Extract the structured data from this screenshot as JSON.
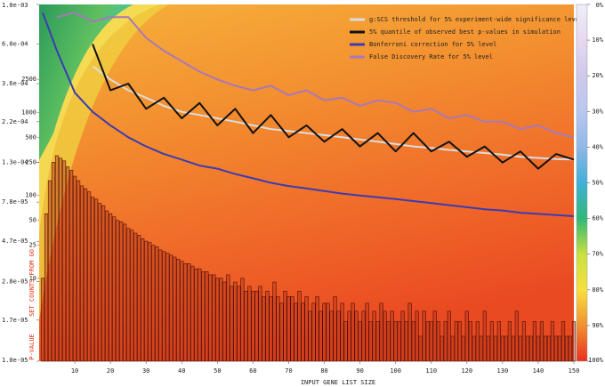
{
  "chart_data": {
    "type": "line",
    "x_label": "INPUT GENE LIST SIZE",
    "y_label": "P-VALUE",
    "y2_label": "SET COUNTS FROM GO",
    "xlim": [
      0,
      150
    ],
    "xticks": [
      10,
      20,
      30,
      40,
      50,
      60,
      70,
      80,
      90,
      100,
      110,
      120,
      130,
      140,
      150
    ],
    "ylim": [
      1e-05,
      0.001
    ],
    "y_log": true,
    "yticks": [
      {
        "value": 0.001,
        "label": "1.0e-03"
      },
      {
        "value": 0.0006,
        "label": "6.0e-04"
      },
      {
        "value": 0.00036,
        "label": "3.6e-04"
      },
      {
        "value": 0.00022,
        "label": "2.2e-04"
      },
      {
        "value": 0.00013,
        "label": "1.3e-04"
      },
      {
        "value": 7.8e-05,
        "label": "7.8e-05"
      },
      {
        "value": 4.7e-05,
        "label": "4.7e-05"
      },
      {
        "value": 2.8e-05,
        "label": "2.8e-05"
      },
      {
        "value": 1.7e-05,
        "label": "1.7e-05"
      },
      {
        "value": 1e-05,
        "label": "1.0e-05"
      }
    ],
    "y2lim": [
      1,
      20000
    ],
    "y2_log": true,
    "y2ticks": [
      10,
      25,
      50,
      100,
      250,
      500,
      1000,
      2500
    ],
    "y2_color": "#e03010",
    "legend": "top-right",
    "x": [
      1,
      5,
      10,
      15,
      20,
      25,
      30,
      35,
      40,
      45,
      50,
      55,
      60,
      65,
      70,
      75,
      80,
      85,
      90,
      95,
      100,
      105,
      110,
      115,
      120,
      125,
      130,
      135,
      140,
      145,
      150
    ],
    "series": [
      {
        "name": "g:SCS threshold for 5% experiment-wide significance level",
        "color": "#dcdcdc",
        "values": [
          null,
          null,
          null,
          0.00045,
          0.00038,
          0.00033,
          0.0003,
          0.00027,
          0.00025,
          0.00024,
          0.00023,
          0.00022,
          0.00021,
          0.0002,
          0.000195,
          0.00019,
          0.000185,
          0.00018,
          0.000175,
          0.00017,
          0.000165,
          0.00016,
          0.000157,
          0.000153,
          0.00015,
          0.000147,
          0.000144,
          0.00014,
          0.000138,
          0.000136,
          0.000135
        ]
      },
      {
        "name": "5% quantile of observed best p-values in simulation",
        "color": "#111111",
        "values": [
          null,
          null,
          null,
          0.0006,
          0.00033,
          0.00036,
          0.00026,
          0.0003,
          0.00023,
          0.00028,
          0.00021,
          0.00026,
          0.00019,
          0.00024,
          0.00018,
          0.00021,
          0.00017,
          0.0002,
          0.00016,
          0.00019,
          0.00015,
          0.00019,
          0.00015,
          0.00017,
          0.00014,
          0.00016,
          0.00013,
          0.00015,
          0.00012,
          0.000145,
          0.000135
        ]
      },
      {
        "name": "Bonferroni correction for 5% level",
        "color": "#3c3cb0",
        "values": [
          0.0009,
          0.00055,
          0.00032,
          0.00025,
          0.00021,
          0.00018,
          0.00016,
          0.000145,
          0.000135,
          0.000125,
          0.00012,
          0.000112,
          0.000106,
          0.0001,
          9.6e-05,
          9.3e-05,
          9e-05,
          8.7e-05,
          8.5e-05,
          8.3e-05,
          8.1e-05,
          7.9e-05,
          7.7e-05,
          7.5e-05,
          7.3e-05,
          7.1e-05,
          7e-05,
          6.8e-05,
          6.7e-05,
          6.6e-05,
          6.5e-05
        ]
      },
      {
        "name": "False Discovery Rate for 5% level",
        "color": "#a878b8",
        "values": [
          null,
          0.00085,
          0.0009,
          0.0008,
          0.00085,
          0.00085,
          0.00065,
          0.00055,
          0.00048,
          0.00042,
          0.00038,
          0.00035,
          0.00033,
          0.00035,
          0.00031,
          0.00033,
          0.00029,
          0.0003,
          0.00027,
          0.00029,
          0.00028,
          0.00025,
          0.00026,
          0.00023,
          0.00024,
          0.00022,
          0.00022,
          0.0002,
          0.00021,
          0.00019,
          0.00018
        ]
      }
    ],
    "bars": {
      "axis": "y2",
      "color": "#b83218",
      "x": [
        1,
        2,
        3,
        4,
        5,
        6,
        7,
        8,
        9,
        10,
        11,
        12,
        13,
        14,
        15,
        16,
        17,
        18,
        19,
        20,
        21,
        22,
        23,
        24,
        25,
        26,
        27,
        28,
        29,
        30,
        31,
        32,
        33,
        34,
        35,
        36,
        37,
        38,
        39,
        40,
        41,
        42,
        43,
        44,
        45,
        46,
        47,
        48,
        49,
        50,
        51,
        52,
        53,
        54,
        55,
        56,
        57,
        58,
        59,
        60,
        61,
        62,
        63,
        64,
        65,
        66,
        67,
        68,
        69,
        70,
        71,
        72,
        73,
        74,
        75,
        76,
        77,
        78,
        79,
        80,
        81,
        82,
        83,
        84,
        85,
        86,
        87,
        88,
        89,
        90,
        91,
        92,
        93,
        94,
        95,
        96,
        97,
        98,
        99,
        100,
        101,
        102,
        103,
        104,
        105,
        106,
        107,
        108,
        109,
        110,
        111,
        112,
        113,
        114,
        115,
        116,
        117,
        118,
        119,
        120,
        121,
        122,
        123,
        124,
        125,
        126,
        127,
        128,
        129,
        130,
        131,
        132,
        133,
        134,
        135,
        136,
        137,
        138,
        139,
        140,
        141,
        142,
        143,
        144,
        145,
        146,
        147,
        148,
        149,
        150
      ],
      "values": [
        10,
        60,
        150,
        250,
        300,
        280,
        260,
        220,
        200,
        170,
        150,
        130,
        120,
        110,
        95,
        90,
        80,
        75,
        65,
        60,
        55,
        50,
        48,
        45,
        40,
        38,
        35,
        33,
        30,
        28,
        27,
        25,
        24,
        22,
        21,
        20,
        19,
        18,
        17,
        16,
        15,
        15,
        14,
        13,
        13,
        12,
        12,
        11,
        11,
        10,
        10,
        9,
        11,
        8,
        9,
        8,
        10,
        7,
        8,
        7,
        7,
        8,
        6,
        7,
        6,
        9,
        6,
        5,
        7,
        6,
        6,
        5,
        7,
        5,
        6,
        4,
        5,
        6,
        4,
        5,
        5,
        4,
        6,
        4,
        5,
        3,
        4,
        5,
        4,
        3,
        4,
        5,
        3,
        4,
        3,
        5,
        4,
        3,
        4,
        3,
        3,
        4,
        3,
        5,
        3,
        4,
        2,
        4,
        3,
        3,
        4,
        3,
        2,
        3,
        4,
        2,
        3,
        3,
        2,
        4,
        3,
        2,
        3,
        2,
        4,
        2,
        3,
        2,
        3,
        2,
        2,
        3,
        2,
        4,
        2,
        3,
        2,
        2,
        3,
        2,
        3,
        2,
        2,
        3,
        2,
        2,
        3,
        2,
        2,
        3
      ]
    },
    "colorbar": {
      "colors": [
        "#f0eef8",
        "#e6d8f0",
        "#d0c8ec",
        "#b8c8f0",
        "#90b8e8",
        "#40b0d8",
        "#30b878",
        "#c8e040",
        "#f8e040",
        "#f09030",
        "#e83020"
      ],
      "ticks": [
        {
          "value": 0,
          "label": "0%"
        },
        {
          "value": 10,
          "label": "10%"
        },
        {
          "value": 20,
          "label": "20%"
        },
        {
          "value": 30,
          "label": "30%"
        },
        {
          "value": 40,
          "label": "40%"
        },
        {
          "value": 50,
          "label": "50%"
        },
        {
          "value": 60,
          "label": "60%"
        },
        {
          "value": 70,
          "label": "70%"
        },
        {
          "value": 80,
          "label": "80%"
        },
        {
          "value": 90,
          "label": "90%"
        },
        {
          "value": 100,
          "label": "100%"
        }
      ]
    }
  }
}
